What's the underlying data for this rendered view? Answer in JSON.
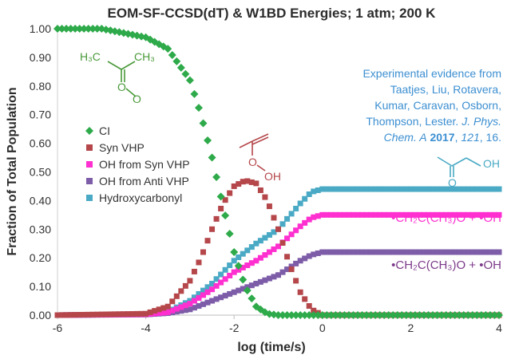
{
  "chart_data": {
    "type": "scatter",
    "title": "EOM-SF-CCSD(dT) & W1BD Energies; 1 atm; 200 K",
    "xlabel": "log (time/s)",
    "ylabel": "Fraction of Total Population",
    "xlim": [
      -6,
      4
    ],
    "ylim": [
      0,
      1
    ],
    "x_ticks": [
      "-6",
      "-4",
      "-2",
      "0",
      "2",
      "4"
    ],
    "y_ticks": [
      "0.00",
      "0.10",
      "0.20",
      "0.30",
      "0.40",
      "0.50",
      "0.60",
      "0.70",
      "0.80",
      "0.90",
      "1.00"
    ],
    "legend_position": "left",
    "series": [
      {
        "name": "CI",
        "color": "#2eaa4a",
        "marker": "diamond",
        "x": [
          -6,
          -5.0,
          -4.0,
          -3.5,
          -3.0,
          -2.75,
          -2.5,
          -2.25,
          -2.0,
          -1.75,
          -1.5,
          -1.25,
          -1.0,
          -0.5,
          0,
          1,
          2,
          4
        ],
        "y": [
          1.0,
          1.0,
          0.97,
          0.93,
          0.82,
          0.7,
          0.55,
          0.38,
          0.22,
          0.1,
          0.03,
          0.005,
          0.0,
          0.0,
          0.0,
          0.0,
          0.0,
          0.0
        ]
      },
      {
        "name": "Syn VHP",
        "color": "#b5474b",
        "marker": "square",
        "x": [
          -6,
          -4.0,
          -3.5,
          -3.0,
          -2.75,
          -2.5,
          -2.25,
          -2.0,
          -1.75,
          -1.5,
          -1.25,
          -1.0,
          -0.75,
          -0.5,
          -0.25,
          0,
          1,
          2,
          4
        ],
        "y": [
          0.0,
          0.005,
          0.03,
          0.12,
          0.2,
          0.3,
          0.39,
          0.45,
          0.47,
          0.46,
          0.4,
          0.3,
          0.18,
          0.08,
          0.02,
          0.0,
          0.0,
          0.0,
          0.0
        ]
      },
      {
        "name": "OH from Syn VHP",
        "color": "#ff2fd0",
        "marker": "square",
        "x": [
          -6,
          -4.0,
          -3.5,
          -3.0,
          -2.5,
          -2.0,
          -1.5,
          -1.0,
          -0.5,
          -0.25,
          0,
          0.5,
          1,
          2,
          3,
          4
        ],
        "y": [
          0.0,
          0.003,
          0.01,
          0.04,
          0.09,
          0.15,
          0.19,
          0.24,
          0.31,
          0.34,
          0.35,
          0.35,
          0.35,
          0.35,
          0.35,
          0.35
        ]
      },
      {
        "name": "OH from Anti VHP",
        "color": "#7d5ca8",
        "marker": "square",
        "x": [
          -6,
          -4.0,
          -3.5,
          -3.0,
          -2.5,
          -2.0,
          -1.5,
          -1.0,
          -0.5,
          -0.25,
          0,
          0.5,
          1,
          2,
          3,
          4
        ],
        "y": [
          0.0,
          0.002,
          0.007,
          0.02,
          0.05,
          0.08,
          0.11,
          0.14,
          0.19,
          0.21,
          0.22,
          0.22,
          0.22,
          0.22,
          0.22,
          0.22
        ]
      },
      {
        "name": "Hydroxycarbonyl",
        "color": "#4aaac5",
        "marker": "square",
        "x": [
          -6,
          -4.0,
          -3.5,
          -3.0,
          -2.5,
          -2.0,
          -1.5,
          -1.0,
          -0.5,
          -0.25,
          0,
          0.5,
          1,
          2,
          3,
          4
        ],
        "y": [
          0.0,
          0.003,
          0.012,
          0.05,
          0.11,
          0.19,
          0.25,
          0.3,
          0.39,
          0.43,
          0.44,
          0.44,
          0.44,
          0.44,
          0.44,
          0.44
        ]
      }
    ]
  },
  "annotation": {
    "lines": [
      "Experimental evidence from",
      "Taatjes, Liu, Rotavera,",
      "Kumar, Caravan, Osborn,",
      "Thompson, Lester."
    ],
    "journal": "J. Phys.",
    "journal2": "Chem. A",
    "year": "2017",
    "volume": "121",
    "page": ", 16."
  },
  "products": {
    "syn": "•CH₂C(CH₃)O + •OH",
    "anti": "•CH₂C(CH₃)O + •OH",
    "syn_color": "#ff2fd0",
    "anti_color": "#7d3a8a"
  },
  "structures": {
    "ci_methyl_left": "H₃C",
    "ci_methyl_right": "CH₃",
    "ci_atom_o1": "O",
    "ci_atom_o2": "O",
    "vhp_atom_o": "O",
    "vhp_atom_oh": "OH",
    "hc_atom_o": "O",
    "hc_atom_oh": "OH"
  }
}
